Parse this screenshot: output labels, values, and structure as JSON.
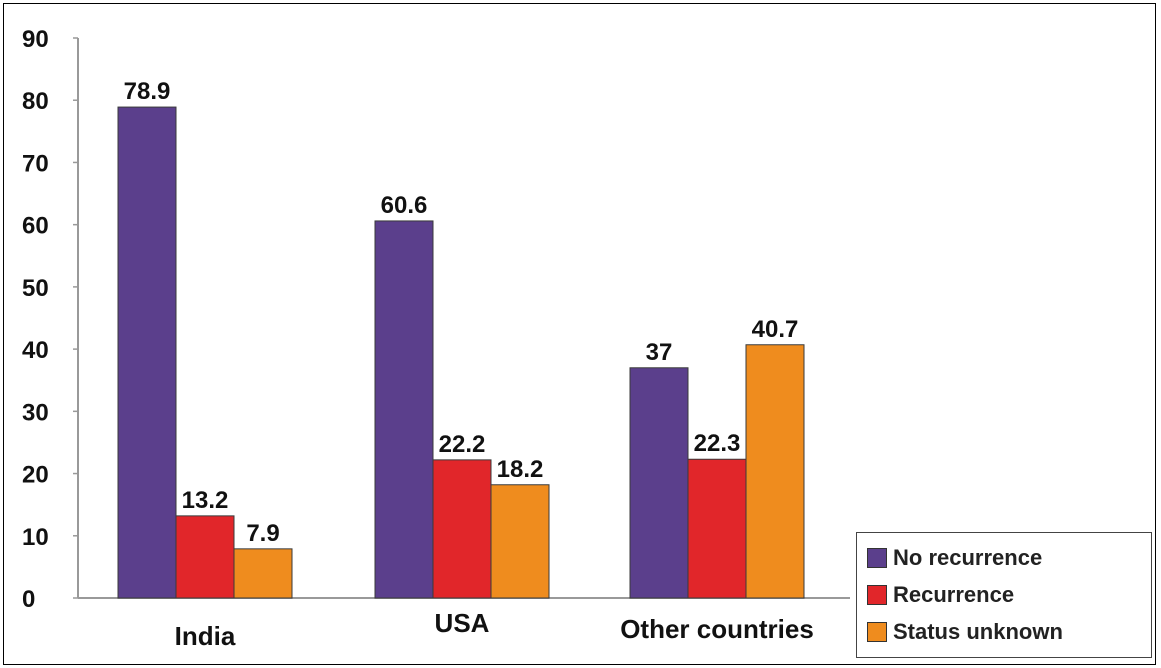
{
  "chart_data": {
    "type": "bar",
    "categories": [
      "India",
      "USA",
      "Other countries"
    ],
    "series": [
      {
        "name": "No recurrence",
        "color": "#5b3f8c",
        "values": [
          78.9,
          60.6,
          37
        ]
      },
      {
        "name": "Recurrence",
        "color": "#e1262a",
        "values": [
          13.2,
          22.2,
          22.3
        ]
      },
      {
        "name": "Status unknown",
        "color": "#ef8c1e",
        "values": [
          7.9,
          18.2,
          40.7
        ]
      }
    ],
    "data_labels": [
      [
        "78.9",
        "13.2",
        "7.9"
      ],
      [
        "60.6",
        "22.2",
        "18.2"
      ],
      [
        "37",
        "22.3",
        "40.7"
      ]
    ],
    "y_ticks": [
      "0",
      "10",
      "20",
      "30",
      "40",
      "50",
      "60",
      "70",
      "80",
      "90"
    ],
    "ylim": [
      0,
      90
    ],
    "title": "",
    "xlabel": "",
    "ylabel": "",
    "grid": false,
    "legend_position": "bottom-right"
  },
  "colors": {
    "axis": "#999999",
    "text": "#111111"
  }
}
